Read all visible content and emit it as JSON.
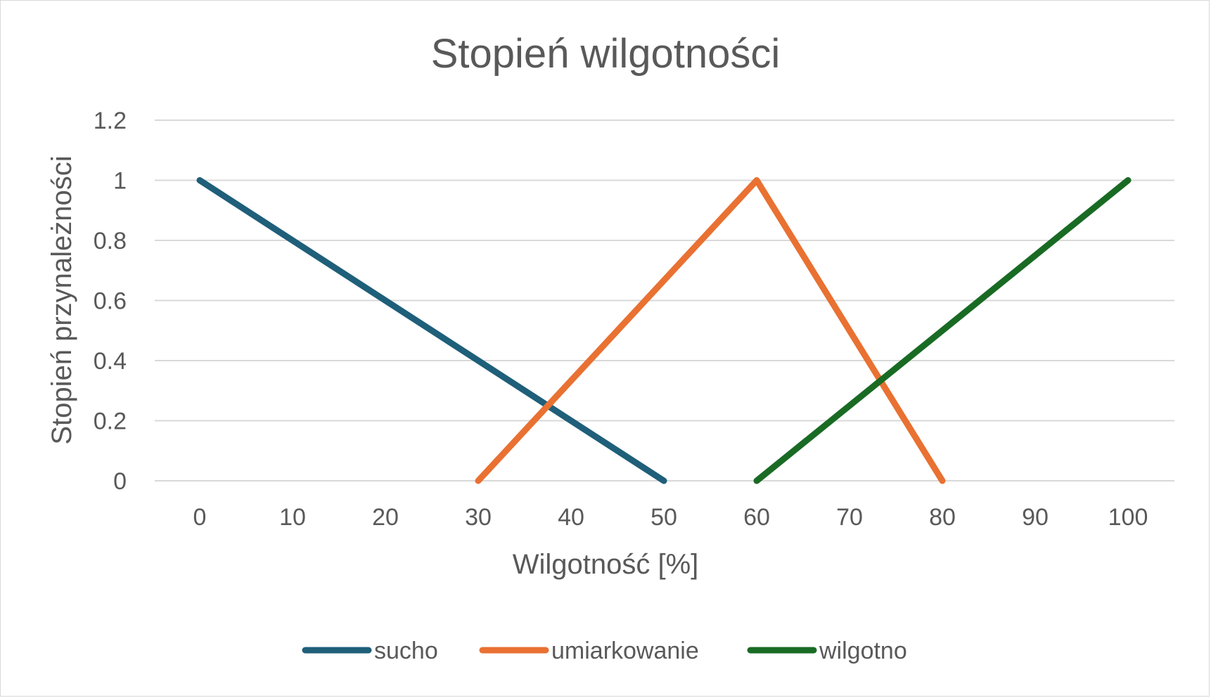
{
  "chart_data": {
    "type": "line",
    "title": "Stopień wilgotności",
    "xlabel": "Wilgotność [%]",
    "ylabel": "Stopień przynależności",
    "x": [
      0,
      10,
      20,
      30,
      40,
      50,
      60,
      70,
      80,
      90,
      100
    ],
    "x_tick_labels": [
      "0",
      "10",
      "20",
      "30",
      "40",
      "50",
      "60",
      "70",
      "80",
      "90",
      "100"
    ],
    "y_ticks": [
      0,
      0.2,
      0.4,
      0.6,
      0.8,
      1,
      1.2
    ],
    "y_tick_labels": [
      "0",
      "0.2",
      "0.4",
      "0.6",
      "0.8",
      "1",
      "1.2"
    ],
    "xlim": [
      0,
      100
    ],
    "ylim": [
      0,
      1.2
    ],
    "grid": true,
    "legend_position": "bottom",
    "series": [
      {
        "name": "sucho",
        "color": "#1f5f7a",
        "points": [
          {
            "x": 0,
            "y": 1
          },
          {
            "x": 50,
            "y": 0
          }
        ]
      },
      {
        "name": "umiarkowanie",
        "color": "#e97132",
        "points": [
          {
            "x": 30,
            "y": 0
          },
          {
            "x": 60,
            "y": 1
          },
          {
            "x": 80,
            "y": 0
          }
        ]
      },
      {
        "name": "wilgotno",
        "color": "#196b24",
        "points": [
          {
            "x": 60,
            "y": 0
          },
          {
            "x": 100,
            "y": 1
          }
        ]
      }
    ]
  }
}
